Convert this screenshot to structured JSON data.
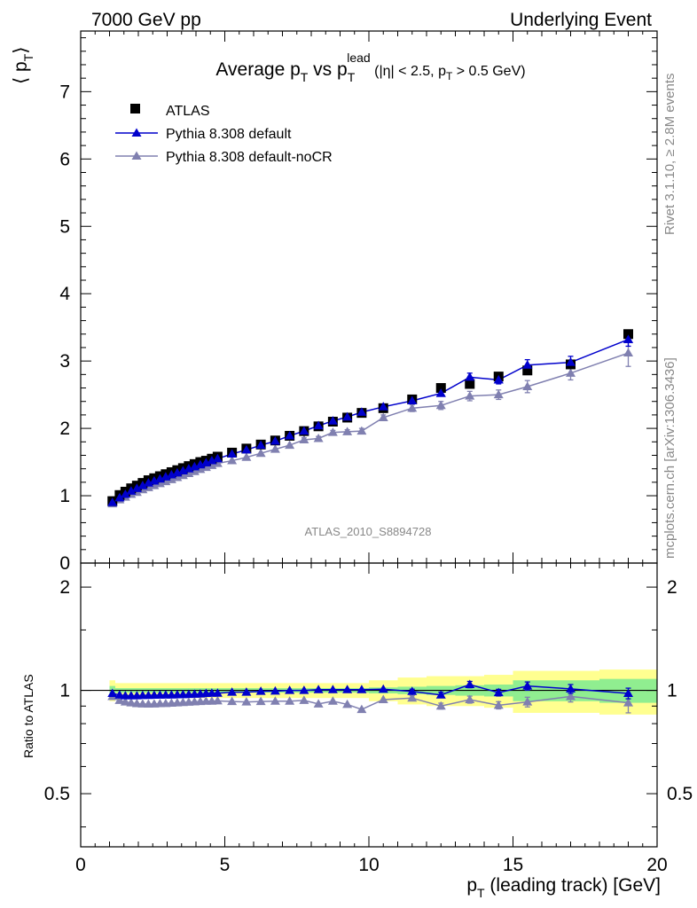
{
  "header": {
    "left": "7000 GeV pp",
    "right": "Underlying Event"
  },
  "side_labels": {
    "rivet": "Rivet 3.1.10, ≥ 2.8M events",
    "mcplots": "mcplots.cern.ch [arXiv:1306.3436]"
  },
  "watermark": "ATLAS_2010_S8894728",
  "chart_data": [
    {
      "type": "scatter",
      "title": {
        "main": "Average p",
        "main_sub": "T",
        "vs": " vs p",
        "vs_sub": "T",
        "vs_sup": "lead",
        "cut_open": " (|η| < 2.5, p",
        "cut_sub": "T",
        "cut_close": " > 0.5 GeV)"
      },
      "ylabel": {
        "open": "⟨ p",
        "sub": "T",
        "close": "⟩"
      },
      "xlim": [
        0,
        20
      ],
      "ylim": [
        0,
        7.9
      ],
      "yticks": [
        0,
        1,
        2,
        3,
        4,
        5,
        6,
        7
      ],
      "ytick_labels": [
        "0",
        "1",
        "2",
        "3",
        "4",
        "5",
        "6",
        "7"
      ],
      "legend_position": "top-left",
      "x": [
        1.1,
        1.35,
        1.55,
        1.75,
        1.95,
        2.15,
        2.35,
        2.55,
        2.75,
        2.95,
        3.15,
        3.35,
        3.55,
        3.75,
        3.95,
        4.15,
        4.35,
        4.55,
        4.75,
        5.25,
        5.75,
        6.25,
        6.75,
        7.25,
        7.75,
        8.25,
        8.75,
        9.25,
        9.75,
        10.5,
        11.5,
        12.5,
        13.5,
        14.5,
        15.5,
        17.0,
        19.0
      ],
      "series": [
        {
          "name": "ATLAS",
          "color": "#000000",
          "marker": "square",
          "values": [
            0.92,
            1.01,
            1.06,
            1.11,
            1.15,
            1.19,
            1.23,
            1.26,
            1.29,
            1.32,
            1.35,
            1.38,
            1.41,
            1.44,
            1.47,
            1.5,
            1.52,
            1.55,
            1.58,
            1.64,
            1.7,
            1.76,
            1.82,
            1.89,
            1.96,
            2.03,
            2.1,
            2.16,
            2.23,
            2.3,
            2.43,
            2.6,
            2.66,
            2.77,
            2.86,
            2.95,
            3.4
          ],
          "errors": [
            0.02,
            0.02,
            0.02,
            0.02,
            0.02,
            0.02,
            0.02,
            0.02,
            0.02,
            0.02,
            0.02,
            0.02,
            0.02,
            0.02,
            0.02,
            0.02,
            0.02,
            0.02,
            0.02,
            0.02,
            0.02,
            0.02,
            0.03,
            0.03,
            0.03,
            0.03,
            0.03,
            0.03,
            0.04,
            0.04,
            0.05,
            0.06,
            0.07,
            0.08,
            0.1,
            0.12,
            0.15
          ]
        },
        {
          "name": "Pythia 8.308 default",
          "color": "#0000cc",
          "marker": "triangle",
          "values": [
            0.9,
            0.97,
            1.02,
            1.07,
            1.11,
            1.15,
            1.19,
            1.22,
            1.25,
            1.28,
            1.31,
            1.34,
            1.37,
            1.4,
            1.43,
            1.46,
            1.49,
            1.52,
            1.55,
            1.62,
            1.68,
            1.75,
            1.81,
            1.89,
            1.96,
            2.04,
            2.11,
            2.17,
            2.24,
            2.32,
            2.41,
            2.52,
            2.76,
            2.72,
            2.94,
            2.98,
            3.32
          ],
          "errors": [
            0.01,
            0.01,
            0.01,
            0.01,
            0.01,
            0.01,
            0.01,
            0.01,
            0.01,
            0.01,
            0.01,
            0.01,
            0.01,
            0.01,
            0.01,
            0.01,
            0.01,
            0.01,
            0.01,
            0.01,
            0.02,
            0.02,
            0.02,
            0.02,
            0.02,
            0.02,
            0.02,
            0.03,
            0.03,
            0.03,
            0.04,
            0.04,
            0.06,
            0.06,
            0.08,
            0.09,
            0.1
          ]
        },
        {
          "name": "Pythia 8.308 default-noCR",
          "color": "#8080b0",
          "marker": "triangle",
          "values": [
            0.88,
            0.94,
            0.98,
            1.02,
            1.05,
            1.09,
            1.12,
            1.15,
            1.18,
            1.21,
            1.24,
            1.27,
            1.3,
            1.33,
            1.36,
            1.39,
            1.42,
            1.45,
            1.48,
            1.52,
            1.57,
            1.63,
            1.69,
            1.75,
            1.83,
            1.85,
            1.94,
            1.95,
            1.96,
            2.16,
            2.3,
            2.34,
            2.48,
            2.5,
            2.62,
            2.82,
            3.12
          ],
          "errors": [
            0.01,
            0.01,
            0.01,
            0.01,
            0.01,
            0.01,
            0.01,
            0.01,
            0.01,
            0.01,
            0.01,
            0.01,
            0.01,
            0.01,
            0.01,
            0.01,
            0.01,
            0.01,
            0.01,
            0.02,
            0.02,
            0.02,
            0.02,
            0.02,
            0.03,
            0.03,
            0.03,
            0.03,
            0.04,
            0.04,
            0.05,
            0.06,
            0.07,
            0.07,
            0.09,
            0.1,
            0.2
          ]
        }
      ]
    },
    {
      "type": "scatter",
      "ylabel": "Ratio to ATLAS",
      "xlabel": {
        "main": "p",
        "sub": "T",
        "rest": " (leading track) [GeV]"
      },
      "xlim": [
        0,
        20
      ],
      "ylim": [
        0.35,
        2.35
      ],
      "log_y": true,
      "xticks": [
        0,
        5,
        10,
        15,
        20
      ],
      "xtick_labels": [
        "0",
        "5",
        "10",
        "15",
        "20"
      ],
      "yticks": [
        0.5,
        1,
        2
      ],
      "ytick_labels": [
        "0.5",
        "1",
        "2"
      ],
      "band_colors": {
        "stat": "#90ee90",
        "total": "#ffff90"
      },
      "band_edges": [
        1.0,
        1.2,
        2.0,
        5.0,
        10.0,
        11.0,
        12.0,
        13.0,
        14.0,
        15.0,
        16.0,
        18.0,
        20.0
      ],
      "band_stat": [
        0.03,
        0.015,
        0.015,
        0.015,
        0.02,
        0.025,
        0.03,
        0.035,
        0.04,
        0.07,
        0.07,
        0.08
      ],
      "band_total": [
        0.07,
        0.05,
        0.05,
        0.05,
        0.07,
        0.09,
        0.1,
        0.1,
        0.11,
        0.14,
        0.14,
        0.15
      ],
      "series": [
        {
          "name": "Pythia 8.308 default",
          "color": "#0000cc",
          "marker": "triangle",
          "values": [
            0.98,
            0.97,
            0.965,
            0.965,
            0.965,
            0.967,
            0.967,
            0.968,
            0.969,
            0.97,
            0.97,
            0.971,
            0.972,
            0.973,
            0.975,
            0.976,
            0.98,
            0.981,
            0.981,
            0.988,
            0.988,
            0.994,
            0.995,
            1.0,
            1.0,
            1.005,
            1.005,
            1.005,
            1.005,
            1.008,
            0.993,
            0.97,
            1.04,
            0.985,
            1.03,
            1.01,
            0.98
          ],
          "errors": [
            0.005,
            0.005,
            0.005,
            0.005,
            0.005,
            0.005,
            0.005,
            0.005,
            0.005,
            0.005,
            0.005,
            0.005,
            0.005,
            0.005,
            0.005,
            0.005,
            0.005,
            0.005,
            0.005,
            0.006,
            0.006,
            0.007,
            0.007,
            0.008,
            0.008,
            0.009,
            0.009,
            0.01,
            0.01,
            0.012,
            0.015,
            0.018,
            0.022,
            0.022,
            0.028,
            0.03,
            0.035
          ]
        },
        {
          "name": "Pythia 8.308 default-noCR",
          "color": "#8080b0",
          "marker": "triangle",
          "values": [
            0.96,
            0.935,
            0.925,
            0.92,
            0.915,
            0.913,
            0.912,
            0.913,
            0.915,
            0.916,
            0.918,
            0.92,
            0.922,
            0.924,
            0.926,
            0.928,
            0.93,
            0.93,
            0.932,
            0.928,
            0.925,
            0.928,
            0.93,
            0.93,
            0.935,
            0.913,
            0.93,
            0.91,
            0.88,
            0.94,
            0.95,
            0.9,
            0.94,
            0.905,
            0.925,
            0.96,
            0.92
          ],
          "errors": [
            0.005,
            0.005,
            0.005,
            0.005,
            0.005,
            0.005,
            0.005,
            0.005,
            0.005,
            0.005,
            0.005,
            0.005,
            0.005,
            0.005,
            0.005,
            0.005,
            0.005,
            0.005,
            0.005,
            0.006,
            0.006,
            0.007,
            0.007,
            0.008,
            0.008,
            0.009,
            0.009,
            0.01,
            0.01,
            0.012,
            0.015,
            0.018,
            0.022,
            0.022,
            0.03,
            0.035,
            0.06
          ]
        }
      ]
    }
  ]
}
